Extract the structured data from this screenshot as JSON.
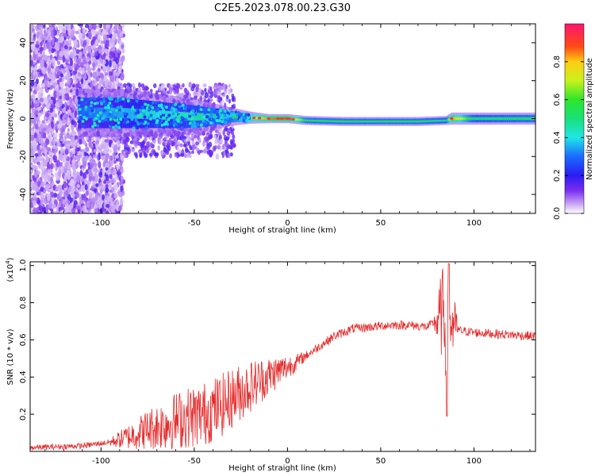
{
  "title": "C2E5.2023.078.00.23.G30",
  "panels": [
    {
      "xlabel": "Height of straight line (km)",
      "ylabel": "Frequency (Hz)",
      "xlim": [
        -138,
        133
      ],
      "ylim": [
        -50,
        50
      ],
      "xticks": [
        -100,
        -50,
        0,
        50,
        100
      ],
      "xtick_labels": [
        "-100",
        "-50",
        "0",
        "50",
        "100"
      ],
      "yticks": [
        -40,
        -20,
        0,
        20,
        40
      ],
      "ytick_labels": [
        "-40",
        "-20",
        "0",
        "20",
        "40"
      ]
    },
    {
      "xlabel": "Height of straight line (km)",
      "ylabel": "SNR (10 * v/v)",
      "multiplier_base": "(x10",
      "multiplier_exp": "4",
      "multiplier_close": ")",
      "xlim": [
        -138,
        133
      ],
      "ylim": [
        0,
        1.02
      ],
      "xticks": [
        -100,
        -50,
        0,
        50,
        100
      ],
      "xtick_labels": [
        "-100",
        "-50",
        "0",
        "50",
        "100"
      ],
      "yticks": [
        0.2,
        0.4,
        0.6,
        0.8,
        1.0
      ],
      "ytick_labels": [
        "0.2",
        "0.4",
        "0.6",
        "0.8",
        "1.0"
      ]
    }
  ],
  "colorbar": {
    "label": "Normalized spectral amplitude",
    "ticks": [
      0.0,
      0.2,
      0.4,
      0.6,
      0.8
    ],
    "tick_labels": [
      "0.0",
      "0.2",
      "0.4",
      "0.6",
      "0.8"
    ],
    "range": [
      0,
      1
    ]
  },
  "chart_data": [
    {
      "type": "heatmap",
      "title": "C2E5.2023.078.00.23.G30",
      "xlabel": "Height of straight line (km)",
      "ylabel": "Frequency (Hz)",
      "xlim": [
        -138,
        133
      ],
      "ylim": [
        -50,
        50
      ],
      "colorbar_label": "Normalized spectral amplitude",
      "colorbar_range": [
        0,
        1
      ],
      "colors": [
        "#ffffff",
        "#9b5cf2",
        "#2a1cf2",
        "#1fe6e6",
        "#2fe62a",
        "#ffcc12",
        "#ff1470"
      ],
      "ridge": {
        "height": [
          -110,
          -90,
          -70,
          -50,
          -30,
          -20,
          -10,
          0,
          10,
          30,
          50,
          70,
          85,
          88,
          100,
          133
        ],
        "center_hz": [
          3,
          3,
          2,
          1,
          1,
          0.5,
          0,
          0,
          -1,
          -1.5,
          -1.5,
          -1.5,
          -1,
          0,
          0,
          0
        ],
        "halfwidth_hz": [
          8,
          8,
          7,
          6,
          3,
          2,
          1.5,
          1.5,
          1.5,
          1.5,
          1.5,
          1.5,
          1.5,
          2,
          2,
          2
        ],
        "amplitude": [
          0.3,
          0.35,
          0.4,
          0.45,
          0.55,
          0.7,
          0.85,
          0.9,
          0.55,
          0.55,
          0.55,
          0.55,
          0.5,
          0.85,
          0.5,
          0.55
        ]
      }
    },
    {
      "type": "line",
      "xlabel": "Height of straight line (km)",
      "ylabel": "SNR (10 * v/v)",
      "xlim": [
        -138,
        133
      ],
      "ylim": [
        0,
        1.02
      ],
      "y_multiplier": "x10^4",
      "series": [
        {
          "color": "#e52b2b",
          "x": [
            -138,
            -110,
            -95,
            -85,
            -75,
            -65,
            -55,
            -45,
            -35,
            -25,
            -15,
            -5,
            5,
            15,
            25,
            35,
            45,
            55,
            65,
            75,
            80,
            84,
            86,
            88,
            92,
            100,
            115,
            133
          ],
          "y": [
            0.02,
            0.03,
            0.05,
            0.08,
            0.12,
            0.15,
            0.18,
            0.2,
            0.25,
            0.32,
            0.38,
            0.43,
            0.48,
            0.55,
            0.62,
            0.66,
            0.67,
            0.68,
            0.68,
            0.67,
            0.7,
            0.75,
            0.55,
            0.7,
            0.65,
            0.64,
            0.63,
            0.62
          ]
        }
      ]
    }
  ]
}
